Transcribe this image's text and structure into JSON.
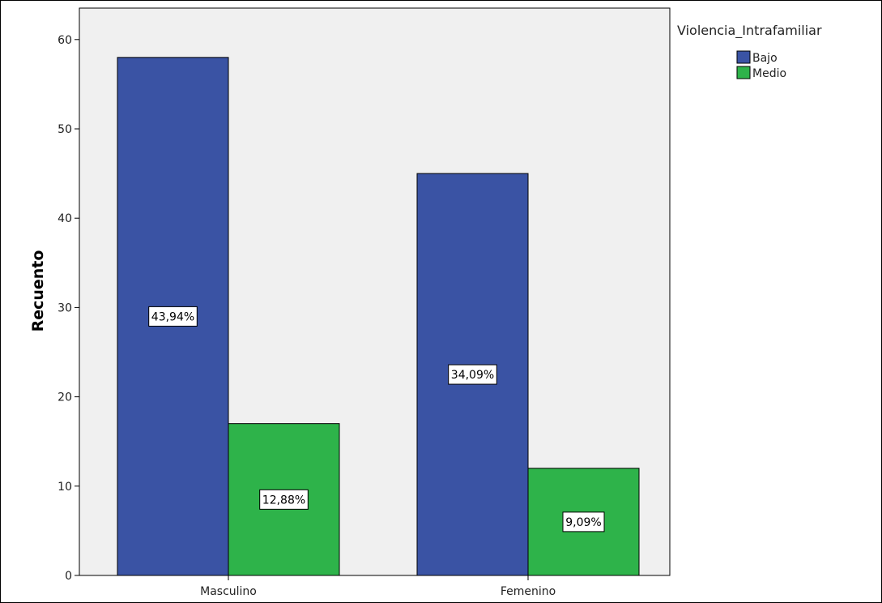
{
  "chart_data": {
    "type": "bar",
    "categories": [
      "Masculino",
      "Femenino"
    ],
    "series": [
      {
        "name": "Bajo",
        "values": [
          58,
          45
        ],
        "labels": [
          "43,94%",
          "34,09%"
        ],
        "color": "#3a53a4"
      },
      {
        "name": "Medio",
        "values": [
          17,
          12
        ],
        "labels": [
          "12,88%",
          "9,09%"
        ],
        "color": "#2eb34a"
      }
    ],
    "xlabel": "",
    "ylabel": "Recuento",
    "ylim": [
      0,
      64
    ],
    "yticks": [
      0,
      10,
      20,
      30,
      40,
      50,
      60
    ],
    "legend": {
      "title": "Violencia_Intrafamiliar",
      "position": "top-right"
    },
    "plot_background": "#f0f0f0",
    "grid": false
  }
}
